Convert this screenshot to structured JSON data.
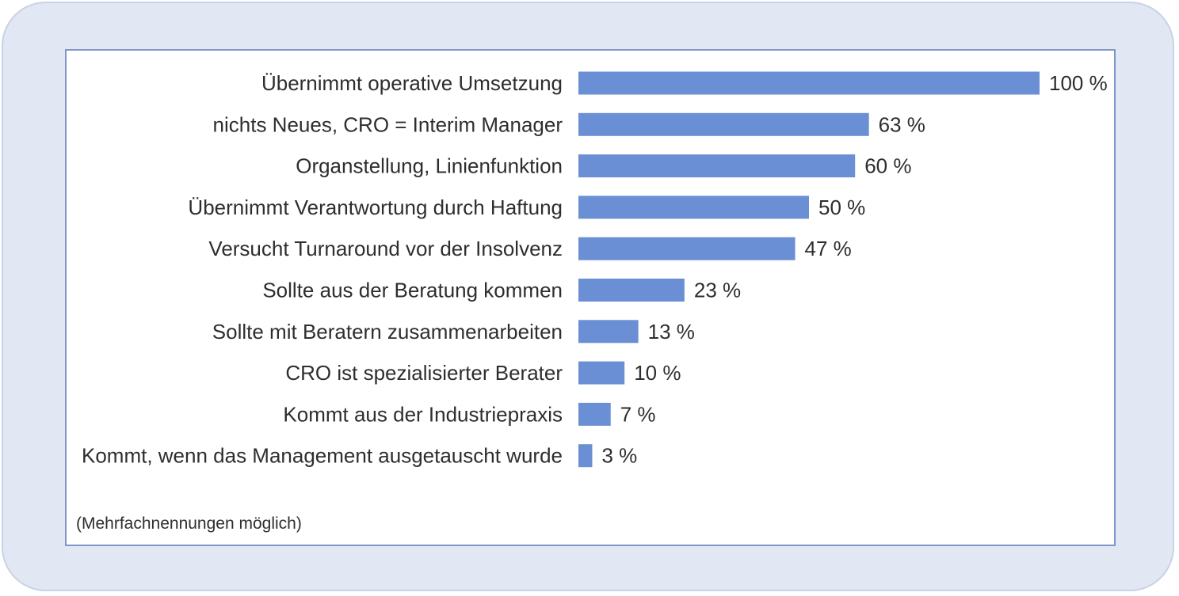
{
  "chart_data": {
    "type": "bar",
    "orientation": "horizontal",
    "categories": [
      "Übernimmt operative Umsetzung",
      "nichts Neues, CRO = Interim Manager",
      "Organstellung, Linienfunktion",
      "Übernimmt Verantwortung durch Haftung",
      "Versucht Turnaround vor der Insolvenz",
      "Sollte aus der Beratung kommen",
      "Sollte mit Beratern zusammenarbeiten",
      "CRO ist spezialisierter Berater",
      "Kommt aus der Industriepraxis",
      "Kommt, wenn das Management ausgetauscht wurde"
    ],
    "values": [
      100,
      63,
      60,
      50,
      47,
      23,
      13,
      10,
      7,
      3
    ],
    "value_labels": [
      "100 %",
      "63 %",
      "60 %",
      "50 %",
      "47 %",
      "23 %",
      "13 %",
      "10 %",
      "7 %",
      "3 %"
    ],
    "xlim": [
      0,
      100
    ],
    "grid": false,
    "legend": "none",
    "bar_color": "#6a8fd4",
    "footnote": "(Mehrfachnennungen möglich)"
  },
  "colors": {
    "frame_background": "#e1e7f3",
    "panel_border": "#7f96c8",
    "bar": "#6a8fd4",
    "text": "#2e2e2e"
  }
}
